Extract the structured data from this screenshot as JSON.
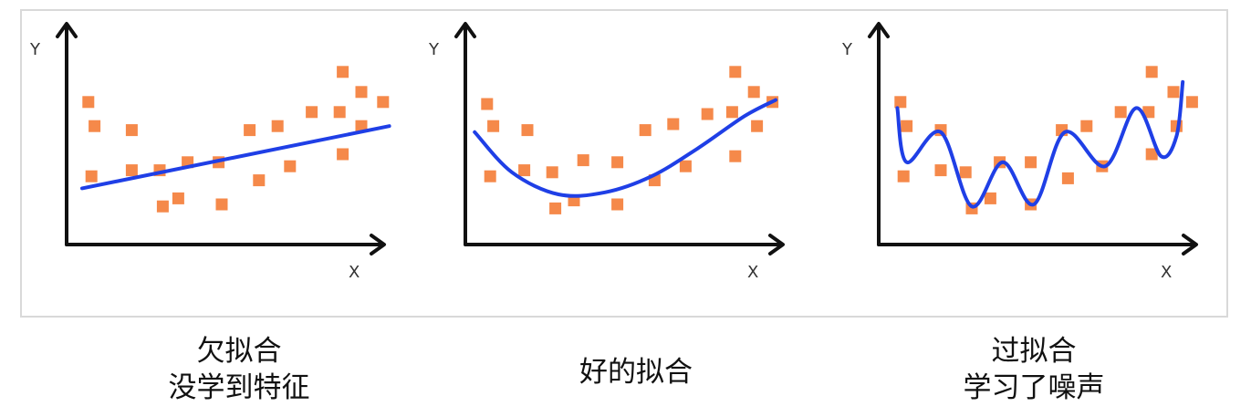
{
  "chart_data": [
    {
      "type": "scatter",
      "caption": [
        "欠拟合",
        "没学到特征"
      ],
      "xlabel": "X",
      "ylabel": "Y",
      "xlim": [
        0,
        10
      ],
      "ylim": [
        0,
        10
      ],
      "colors": {
        "points": "#f5894a",
        "curve": "#1f3fe6",
        "axis": "#111111"
      },
      "points": [
        {
          "x": 0.7,
          "y": 7.1
        },
        {
          "x": 0.9,
          "y": 5.9
        },
        {
          "x": 0.8,
          "y": 3.4
        },
        {
          "x": 2.1,
          "y": 5.7
        },
        {
          "x": 2.1,
          "y": 3.7
        },
        {
          "x": 3.0,
          "y": 3.7
        },
        {
          "x": 3.1,
          "y": 1.9
        },
        {
          "x": 3.6,
          "y": 2.3
        },
        {
          "x": 3.9,
          "y": 4.1
        },
        {
          "x": 4.9,
          "y": 4.1
        },
        {
          "x": 5.0,
          "y": 2.0
        },
        {
          "x": 5.9,
          "y": 5.7
        },
        {
          "x": 6.2,
          "y": 3.2
        },
        {
          "x": 6.8,
          "y": 5.9
        },
        {
          "x": 7.2,
          "y": 3.9
        },
        {
          "x": 7.9,
          "y": 6.6
        },
        {
          "x": 8.8,
          "y": 6.6
        },
        {
          "x": 8.9,
          "y": 4.5
        },
        {
          "x": 8.9,
          "y": 8.6
        },
        {
          "x": 9.5,
          "y": 7.6
        },
        {
          "x": 9.5,
          "y": 5.9
        },
        {
          "x": 10.2,
          "y": 7.1
        }
      ],
      "curve": [
        {
          "x": 0.5,
          "y": 2.8
        },
        {
          "x": 10.4,
          "y": 5.9
        }
      ]
    },
    {
      "type": "scatter",
      "caption": [
        "好的拟合"
      ],
      "xlabel": "X",
      "ylabel": "Y",
      "xlim": [
        0,
        10
      ],
      "ylim": [
        0,
        10
      ],
      "colors": {
        "points": "#f5894a",
        "curve": "#1f3fe6",
        "axis": "#111111"
      },
      "points": [
        {
          "x": 0.7,
          "y": 7.0
        },
        {
          "x": 0.9,
          "y": 5.9
        },
        {
          "x": 0.8,
          "y": 3.4
        },
        {
          "x": 2.0,
          "y": 5.7
        },
        {
          "x": 1.9,
          "y": 3.7
        },
        {
          "x": 2.8,
          "y": 3.6
        },
        {
          "x": 2.9,
          "y": 1.8
        },
        {
          "x": 3.5,
          "y": 2.2
        },
        {
          "x": 3.8,
          "y": 4.2
        },
        {
          "x": 4.9,
          "y": 4.1
        },
        {
          "x": 4.9,
          "y": 2.0
        },
        {
          "x": 5.8,
          "y": 5.7
        },
        {
          "x": 6.1,
          "y": 3.2
        },
        {
          "x": 6.7,
          "y": 6.0
        },
        {
          "x": 7.1,
          "y": 3.9
        },
        {
          "x": 7.8,
          "y": 6.5
        },
        {
          "x": 8.6,
          "y": 6.6
        },
        {
          "x": 8.7,
          "y": 4.4
        },
        {
          "x": 8.7,
          "y": 8.6
        },
        {
          "x": 9.3,
          "y": 7.6
        },
        {
          "x": 9.4,
          "y": 5.9
        },
        {
          "x": 9.9,
          "y": 7.1
        }
      ],
      "curve": [
        {
          "x": 0.3,
          "y": 5.6
        },
        {
          "x": 1.5,
          "y": 3.6
        },
        {
          "x": 3.0,
          "y": 2.5
        },
        {
          "x": 4.5,
          "y": 2.6
        },
        {
          "x": 6.0,
          "y": 3.4
        },
        {
          "x": 7.5,
          "y": 4.8
        },
        {
          "x": 9.0,
          "y": 6.4
        },
        {
          "x": 10.0,
          "y": 7.2
        }
      ]
    },
    {
      "type": "scatter",
      "caption": [
        "过拟合",
        "学习了噪声"
      ],
      "xlabel": "X",
      "ylabel": "Y",
      "xlim": [
        0,
        10
      ],
      "ylim": [
        0,
        10
      ],
      "colors": {
        "points": "#f5894a",
        "curve": "#1f3fe6",
        "axis": "#111111"
      },
      "points": [
        {
          "x": 0.7,
          "y": 7.1
        },
        {
          "x": 0.9,
          "y": 5.9
        },
        {
          "x": 0.8,
          "y": 3.4
        },
        {
          "x": 2.0,
          "y": 5.7
        },
        {
          "x": 2.0,
          "y": 3.7
        },
        {
          "x": 2.8,
          "y": 3.6
        },
        {
          "x": 3.0,
          "y": 1.8
        },
        {
          "x": 3.6,
          "y": 2.3
        },
        {
          "x": 3.9,
          "y": 4.1
        },
        {
          "x": 4.9,
          "y": 4.1
        },
        {
          "x": 4.9,
          "y": 2.0
        },
        {
          "x": 5.9,
          "y": 5.7
        },
        {
          "x": 6.1,
          "y": 3.3
        },
        {
          "x": 6.7,
          "y": 5.9
        },
        {
          "x": 7.2,
          "y": 3.9
        },
        {
          "x": 7.8,
          "y": 6.6
        },
        {
          "x": 8.7,
          "y": 6.6
        },
        {
          "x": 8.8,
          "y": 4.5
        },
        {
          "x": 8.8,
          "y": 8.6
        },
        {
          "x": 9.5,
          "y": 7.6
        },
        {
          "x": 9.6,
          "y": 5.9
        },
        {
          "x": 10.1,
          "y": 7.1
        }
      ],
      "curve": [
        {
          "x": 0.6,
          "y": 6.8
        },
        {
          "x": 0.9,
          "y": 4.1
        },
        {
          "x": 2.0,
          "y": 5.6
        },
        {
          "x": 3.0,
          "y": 1.9
        },
        {
          "x": 4.0,
          "y": 4.1
        },
        {
          "x": 5.0,
          "y": 2.0
        },
        {
          "x": 6.0,
          "y": 5.6
        },
        {
          "x": 7.3,
          "y": 3.9
        },
        {
          "x": 8.3,
          "y": 6.8
        },
        {
          "x": 9.1,
          "y": 4.4
        },
        {
          "x": 9.6,
          "y": 5.4
        },
        {
          "x": 9.8,
          "y": 8.1
        }
      ]
    }
  ]
}
